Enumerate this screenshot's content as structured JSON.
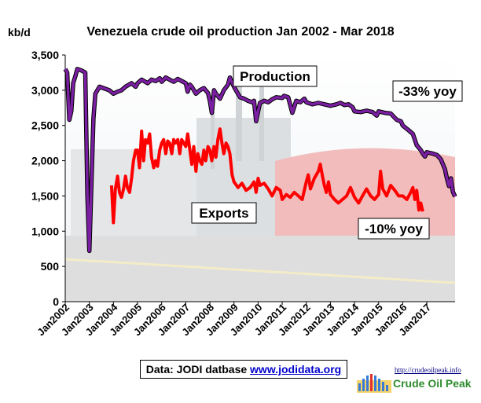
{
  "chart_data": {
    "type": "line",
    "title": "Venezuela crude oil production Jan 2002 - Mar 2018",
    "ylabel": "kb/d",
    "ylim": [
      0,
      3500
    ],
    "yticks": [
      "0",
      "500",
      "1,000",
      "1,500",
      "2,000",
      "2,500",
      "3,000",
      "3,500"
    ],
    "ytick_values": [
      0,
      500,
      1000,
      1500,
      2000,
      2500,
      3000,
      3500
    ],
    "xlim": [
      2002.0,
      2018.17
    ],
    "xticks": [
      "Jan2002",
      "Jan2003",
      "Jan2004",
      "Jan2005",
      "Jan2006",
      "Jan2007",
      "Jan2008",
      "Jan2009",
      "Jan2010",
      "Jan2011",
      "Jan2012",
      "Jan2013",
      "Jan2014",
      "Jan2015",
      "Jan2016",
      "Jan2017"
    ],
    "xtick_values": [
      2002,
      2003,
      2004,
      2005,
      2006,
      2007,
      2008,
      2009,
      2010,
      2011,
      2012,
      2013,
      2014,
      2015,
      2016,
      2017
    ],
    "grid": false,
    "series": [
      {
        "name": "Production",
        "color": "#7b1fa2",
        "annotation": "-33% yoy",
        "points": [
          [
            2002.0,
            3300
          ],
          [
            2002.08,
            3250
          ],
          [
            2002.17,
            2580
          ],
          [
            2002.25,
            2700
          ],
          [
            2002.33,
            3100
          ],
          [
            2002.42,
            3200
          ],
          [
            2002.5,
            3300
          ],
          [
            2002.67,
            3280
          ],
          [
            2002.83,
            3250
          ],
          [
            2002.92,
            1500
          ],
          [
            2003.0,
            720
          ],
          [
            2003.08,
            1600
          ],
          [
            2003.17,
            2600
          ],
          [
            2003.25,
            2950
          ],
          [
            2003.42,
            3050
          ],
          [
            2003.67,
            3020
          ],
          [
            2003.83,
            3000
          ],
          [
            2004.0,
            2950
          ],
          [
            2004.17,
            2980
          ],
          [
            2004.33,
            3000
          ],
          [
            2004.5,
            3050
          ],
          [
            2004.75,
            3100
          ],
          [
            2004.92,
            3050
          ],
          [
            2005.0,
            3100
          ],
          [
            2005.17,
            3150
          ],
          [
            2005.42,
            3100
          ],
          [
            2005.58,
            3150
          ],
          [
            2005.75,
            3130
          ],
          [
            2005.92,
            3170
          ],
          [
            2006.0,
            3120
          ],
          [
            2006.17,
            3180
          ],
          [
            2006.33,
            3150
          ],
          [
            2006.5,
            3120
          ],
          [
            2006.67,
            3160
          ],
          [
            2006.83,
            3130
          ],
          [
            2007.0,
            3100
          ],
          [
            2007.08,
            2980
          ],
          [
            2007.17,
            3080
          ],
          [
            2007.25,
            3050
          ],
          [
            2007.42,
            2950
          ],
          [
            2007.58,
            3000
          ],
          [
            2007.75,
            3030
          ],
          [
            2007.92,
            2960
          ],
          [
            2008.0,
            2850
          ],
          [
            2008.08,
            2680
          ],
          [
            2008.17,
            3000
          ],
          [
            2008.25,
            2950
          ],
          [
            2008.42,
            2880
          ],
          [
            2008.58,
            3000
          ],
          [
            2008.75,
            3080
          ],
          [
            2008.83,
            3180
          ],
          [
            2009.0,
            3050
          ],
          [
            2009.08,
            3000
          ],
          [
            2009.25,
            2900
          ],
          [
            2009.42,
            2880
          ],
          [
            2009.58,
            2850
          ],
          [
            2009.75,
            2830
          ],
          [
            2009.83,
            2850
          ],
          [
            2009.92,
            2560
          ],
          [
            2010.0,
            2700
          ],
          [
            2010.08,
            2820
          ],
          [
            2010.25,
            2850
          ],
          [
            2010.42,
            2830
          ],
          [
            2010.58,
            2870
          ],
          [
            2010.75,
            2900
          ],
          [
            2011.0,
            2890
          ],
          [
            2011.08,
            2920
          ],
          [
            2011.25,
            2900
          ],
          [
            2011.42,
            2680
          ],
          [
            2011.58,
            2850
          ],
          [
            2011.75,
            2830
          ],
          [
            2011.92,
            2880
          ],
          [
            2012.0,
            2830
          ],
          [
            2012.25,
            2800
          ],
          [
            2012.5,
            2820
          ],
          [
            2012.75,
            2800
          ],
          [
            2013.0,
            2780
          ],
          [
            2013.25,
            2800
          ],
          [
            2013.42,
            2820
          ],
          [
            2013.58,
            2790
          ],
          [
            2013.75,
            2800
          ],
          [
            2013.92,
            2760
          ],
          [
            2014.0,
            2700
          ],
          [
            2014.25,
            2690
          ],
          [
            2014.5,
            2710
          ],
          [
            2014.75,
            2690
          ],
          [
            2014.92,
            2640
          ],
          [
            2015.0,
            2700
          ],
          [
            2015.25,
            2680
          ],
          [
            2015.5,
            2670
          ],
          [
            2015.75,
            2580
          ],
          [
            2015.92,
            2560
          ],
          [
            2016.0,
            2500
          ],
          [
            2016.25,
            2430
          ],
          [
            2016.42,
            2380
          ],
          [
            2016.58,
            2220
          ],
          [
            2016.75,
            2150
          ],
          [
            2016.83,
            2100
          ],
          [
            2016.92,
            2060
          ],
          [
            2017.0,
            2120
          ],
          [
            2017.25,
            2100
          ],
          [
            2017.42,
            2080
          ],
          [
            2017.58,
            2020
          ],
          [
            2017.75,
            1880
          ],
          [
            2017.83,
            1750
          ],
          [
            2017.92,
            1640
          ],
          [
            2018.0,
            1750
          ],
          [
            2018.08,
            1560
          ],
          [
            2018.17,
            1490
          ]
        ]
      },
      {
        "name": "Exports",
        "color": "#ff0000",
        "annotation": "-10% yoy",
        "points": [
          [
            2003.92,
            1650
          ],
          [
            2004.0,
            1120
          ],
          [
            2004.08,
            1600
          ],
          [
            2004.17,
            1780
          ],
          [
            2004.25,
            1550
          ],
          [
            2004.33,
            1480
          ],
          [
            2004.42,
            1600
          ],
          [
            2004.5,
            1780
          ],
          [
            2004.58,
            1620
          ],
          [
            2004.67,
            1550
          ],
          [
            2004.75,
            1750
          ],
          [
            2004.83,
            2000
          ],
          [
            2004.92,
            2150
          ],
          [
            2005.0,
            2150
          ],
          [
            2005.08,
            1900
          ],
          [
            2005.17,
            2420
          ],
          [
            2005.25,
            2000
          ],
          [
            2005.33,
            2300
          ],
          [
            2005.42,
            2250
          ],
          [
            2005.5,
            2380
          ],
          [
            2005.58,
            2050
          ],
          [
            2005.67,
            1900
          ],
          [
            2005.75,
            2000
          ],
          [
            2005.83,
            1920
          ],
          [
            2005.92,
            2150
          ],
          [
            2006.0,
            2250
          ],
          [
            2006.08,
            2300
          ],
          [
            2006.17,
            2100
          ],
          [
            2006.25,
            2280
          ],
          [
            2006.33,
            2250
          ],
          [
            2006.42,
            2100
          ],
          [
            2006.5,
            2300
          ],
          [
            2006.58,
            2250
          ],
          [
            2006.67,
            2300
          ],
          [
            2006.75,
            2100
          ],
          [
            2006.83,
            2300
          ],
          [
            2007.0,
            2200
          ],
          [
            2007.08,
            2380
          ],
          [
            2007.17,
            2150
          ],
          [
            2007.25,
            1950
          ],
          [
            2007.33,
            2200
          ],
          [
            2007.42,
            1850
          ],
          [
            2007.5,
            2100
          ],
          [
            2007.58,
            2000
          ],
          [
            2007.67,
            1950
          ],
          [
            2007.75,
            2150
          ],
          [
            2007.83,
            2000
          ],
          [
            2007.92,
            2200
          ],
          [
            2008.0,
            2150
          ],
          [
            2008.08,
            2000
          ],
          [
            2008.17,
            2200
          ],
          [
            2008.25,
            2050
          ],
          [
            2008.33,
            2300
          ],
          [
            2008.42,
            2450
          ],
          [
            2008.5,
            2250
          ],
          [
            2008.58,
            2100
          ],
          [
            2008.67,
            2250
          ],
          [
            2008.75,
            2200
          ],
          [
            2008.83,
            2100
          ],
          [
            2008.92,
            1800
          ],
          [
            2009.0,
            1700
          ],
          [
            2009.17,
            1620
          ],
          [
            2009.33,
            1680
          ],
          [
            2009.5,
            1580
          ],
          [
            2009.67,
            1620
          ],
          [
            2009.83,
            1700
          ],
          [
            2009.92,
            1550
          ],
          [
            2010.0,
            1750
          ],
          [
            2010.08,
            1650
          ],
          [
            2010.25,
            1680
          ],
          [
            2010.42,
            1600
          ],
          [
            2010.58,
            1500
          ],
          [
            2010.75,
            1620
          ],
          [
            2010.92,
            1580
          ],
          [
            2011.0,
            1450
          ],
          [
            2011.17,
            1520
          ],
          [
            2011.33,
            1480
          ],
          [
            2011.5,
            1550
          ],
          [
            2011.67,
            1500
          ],
          [
            2011.83,
            1450
          ],
          [
            2012.0,
            1700
          ],
          [
            2012.08,
            1800
          ],
          [
            2012.17,
            1600
          ],
          [
            2012.33,
            1750
          ],
          [
            2012.5,
            1850
          ],
          [
            2012.58,
            1950
          ],
          [
            2012.67,
            1780
          ],
          [
            2012.75,
            1650
          ],
          [
            2012.83,
            1550
          ],
          [
            2012.92,
            1700
          ],
          [
            2013.0,
            1520
          ],
          [
            2013.17,
            1450
          ],
          [
            2013.33,
            1400
          ],
          [
            2013.5,
            1450
          ],
          [
            2013.67,
            1500
          ],
          [
            2013.83,
            1620
          ],
          [
            2014.0,
            1480
          ],
          [
            2014.17,
            1400
          ],
          [
            2014.33,
            1500
          ],
          [
            2014.5,
            1600
          ],
          [
            2014.67,
            1500
          ],
          [
            2014.83,
            1450
          ],
          [
            2015.0,
            1520
          ],
          [
            2015.08,
            1850
          ],
          [
            2015.17,
            1600
          ],
          [
            2015.33,
            1500
          ],
          [
            2015.5,
            1650
          ],
          [
            2015.67,
            1580
          ],
          [
            2015.83,
            1500
          ],
          [
            2016.0,
            1500
          ],
          [
            2016.17,
            1450
          ],
          [
            2016.33,
            1550
          ],
          [
            2016.42,
            1620
          ],
          [
            2016.5,
            1450
          ],
          [
            2016.58,
            1580
          ],
          [
            2016.67,
            1300
          ],
          [
            2016.75,
            1400
          ],
          [
            2016.83,
            1280
          ]
        ]
      }
    ],
    "annotations": [
      {
        "text": "Production",
        "series": "Production"
      },
      {
        "text": "-33% yoy",
        "series": "Production"
      },
      {
        "text": "Exports",
        "series": "Exports"
      },
      {
        "text": "-10% yoy",
        "series": "Exports"
      }
    ]
  },
  "source": {
    "prefix": "Data: JODI datbase",
    "link": "www.jodidata.org"
  },
  "brand": {
    "url": "http://crudeoilpeak.info",
    "name": "Crude Oil Peak"
  }
}
